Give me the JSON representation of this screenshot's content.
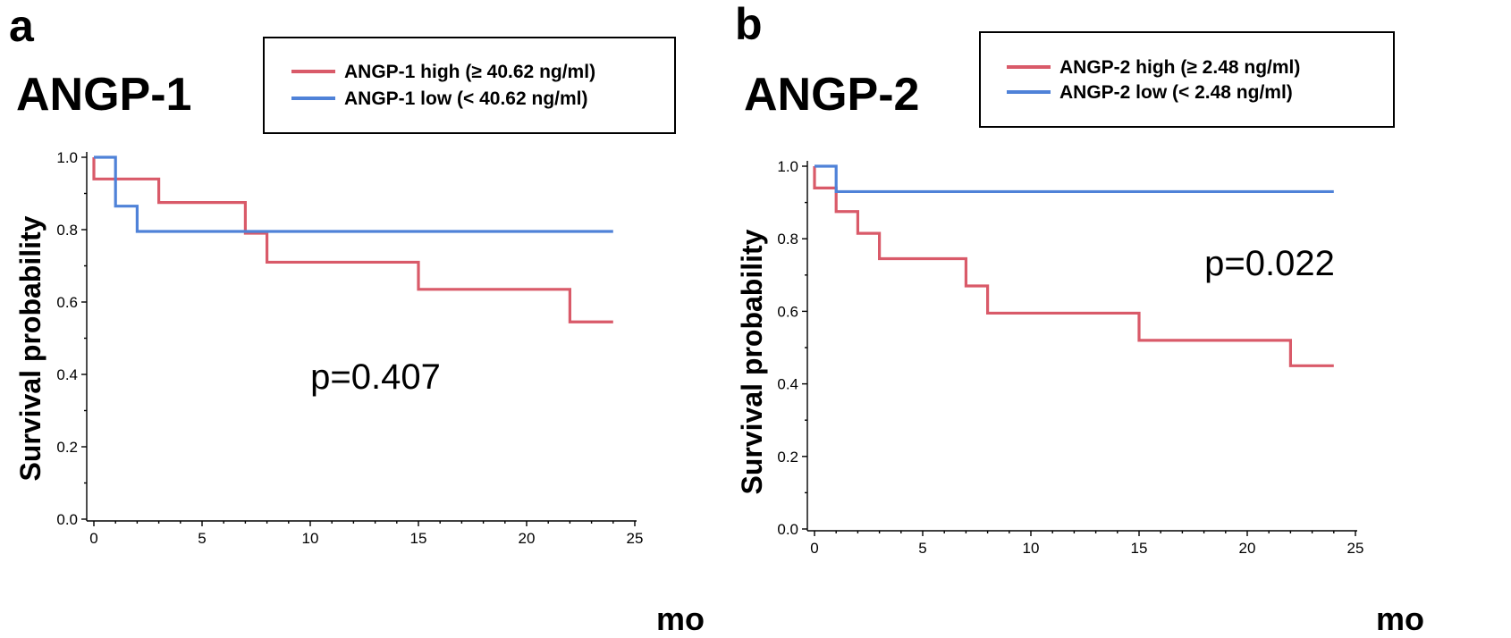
{
  "chart_data": [
    {
      "type": "line",
      "subtype": "kaplan-meier",
      "panel_label": "a",
      "title": "ANGP-1",
      "xlabel": "mo",
      "ylabel": "Survival probability",
      "xlim": [
        0,
        25
      ],
      "ylim": [
        0,
        1.0
      ],
      "x_ticks": [
        0,
        5,
        10,
        15,
        20,
        25
      ],
      "y_ticks": [
        0.0,
        0.2,
        0.4,
        0.6,
        0.8,
        1.0
      ],
      "x_tick_labels": [
        "0",
        "5",
        "10",
        "15",
        "20",
        "25"
      ],
      "y_tick_labels": [
        "0.0",
        "0.2",
        "0.4",
        "0.6",
        "0.8",
        "1.0"
      ],
      "annotation": "p=0.407",
      "legend_position": "top-right",
      "series": [
        {
          "name": "ANGP-1 high (≥ 40.62 ng/ml)",
          "color": "#d95a69",
          "steps": [
            [
              0,
              1.0
            ],
            [
              0,
              0.94
            ],
            [
              3,
              0.875
            ],
            [
              7,
              0.79
            ],
            [
              8,
              0.71
            ],
            [
              15,
              0.635
            ],
            [
              22,
              0.545
            ],
            [
              24,
              0.545
            ]
          ]
        },
        {
          "name": "ANGP-1 low  (< 40.62 ng/ml)",
          "color": "#4f82d8",
          "steps": [
            [
              0,
              1.0
            ],
            [
              1,
              0.865
            ],
            [
              2,
              0.795
            ],
            [
              24,
              0.795
            ]
          ]
        }
      ]
    },
    {
      "type": "line",
      "subtype": "kaplan-meier",
      "panel_label": "b",
      "title": "ANGP-2",
      "xlabel": "mo",
      "ylabel": "Survival probability",
      "xlim": [
        0,
        25
      ],
      "ylim": [
        0,
        1.0
      ],
      "x_ticks": [
        0,
        5,
        10,
        15,
        20,
        25
      ],
      "y_ticks": [
        0.0,
        0.2,
        0.4,
        0.6,
        0.8,
        1.0
      ],
      "x_tick_labels": [
        "0",
        "5",
        "10",
        "15",
        "20",
        "25"
      ],
      "y_tick_labels": [
        "0.0",
        "0.2",
        "0.4",
        "0.6",
        "0.8",
        "1.0"
      ],
      "annotation": "p=0.022",
      "legend_position": "top-right",
      "series": [
        {
          "name": "ANGP-2 high (≥ 2.48 ng/ml)",
          "color": "#d95a69",
          "steps": [
            [
              0,
              1.0
            ],
            [
              0,
              0.94
            ],
            [
              1,
              0.875
            ],
            [
              2,
              0.815
            ],
            [
              3,
              0.745
            ],
            [
              7,
              0.67
            ],
            [
              8,
              0.595
            ],
            [
              15,
              0.52
            ],
            [
              22,
              0.45
            ],
            [
              24,
              0.45
            ]
          ]
        },
        {
          "name": "ANGP-2 low  (< 2.48 ng/ml)",
          "color": "#4f82d8",
          "steps": [
            [
              0,
              1.0
            ],
            [
              1,
              0.93
            ],
            [
              24,
              0.93
            ]
          ]
        }
      ]
    }
  ]
}
